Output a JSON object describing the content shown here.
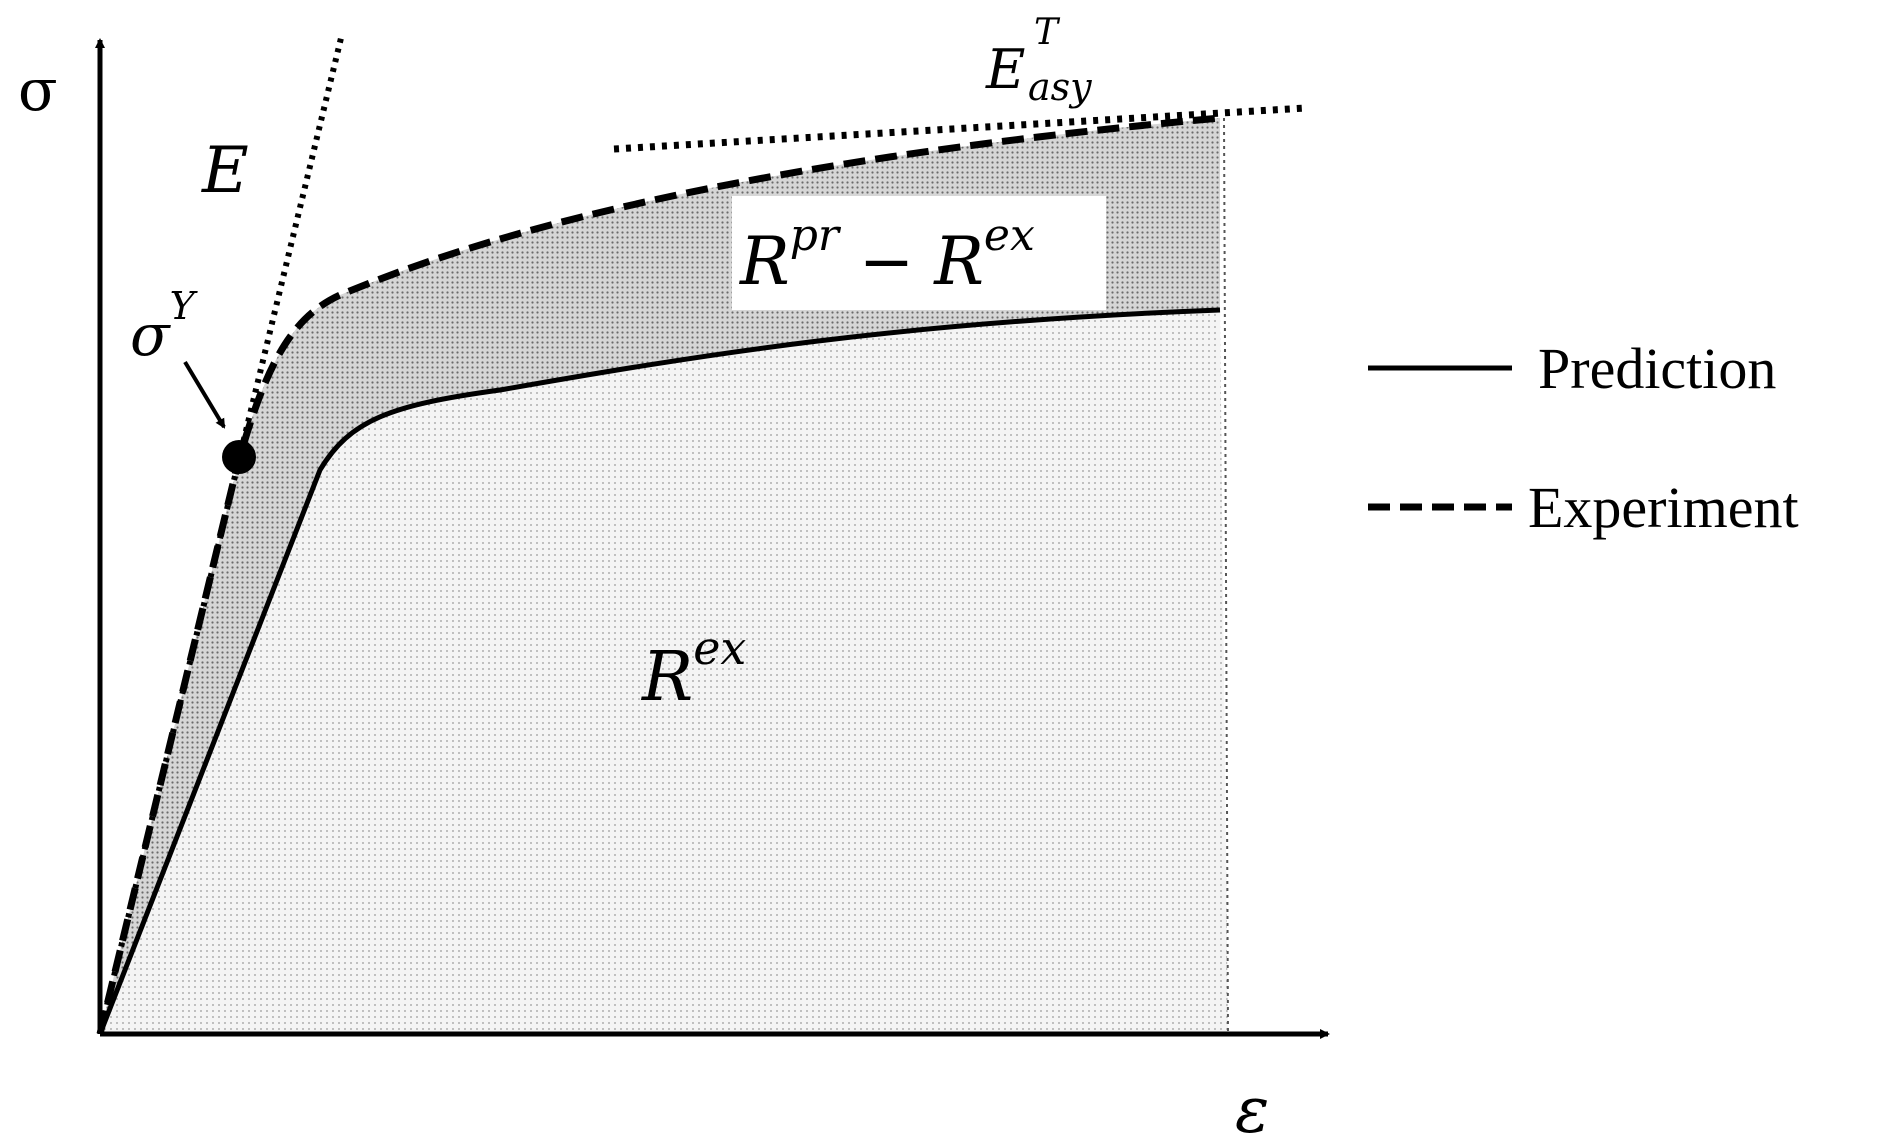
{
  "axes": {
    "y_label": "σ",
    "x_label": "ε"
  },
  "annotations": {
    "modulus": "E",
    "yield": {
      "base": "σ",
      "sup": "Y"
    },
    "asymptote": {
      "base": "E",
      "sup": "T",
      "sub": "asy"
    },
    "residual_region": {
      "a": "R",
      "a_sup": "pr",
      "op": "−",
      "b": "R",
      "b_sup": "ex"
    },
    "lower_region": {
      "base": "R",
      "sup": "ex"
    }
  },
  "legend": {
    "items": [
      {
        "label": "Prediction",
        "style": "solid"
      },
      {
        "label": "Experiment",
        "style": "dashed"
      }
    ]
  },
  "colors": {
    "ink": "#000000",
    "upper_fill": "#c8c8c8",
    "lower_fill": "#eeeeee",
    "label_box": "#ffffff"
  }
}
